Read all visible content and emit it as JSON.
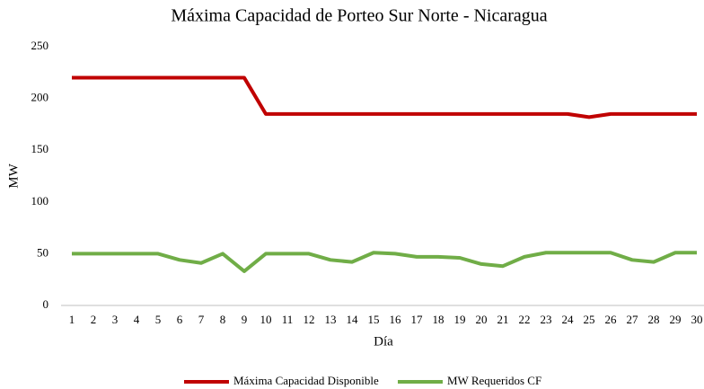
{
  "chart_data": {
    "type": "line",
    "title": "Máxima Capacidad de Porteo Sur Norte - Nicaragua",
    "x_label": "Día",
    "y_label": "MW",
    "categories": [
      1,
      2,
      3,
      4,
      5,
      6,
      7,
      8,
      9,
      10,
      11,
      12,
      13,
      14,
      15,
      16,
      17,
      18,
      19,
      20,
      21,
      22,
      23,
      24,
      25,
      26,
      27,
      28,
      29,
      30
    ],
    "series": [
      {
        "name": "Máxima Capacidad Disponible",
        "color": "#c00000",
        "values": [
          220,
          220,
          220,
          220,
          220,
          220,
          220,
          220,
          220,
          185,
          185,
          185,
          185,
          185,
          185,
          185,
          185,
          185,
          185,
          185,
          185,
          185,
          185,
          185,
          182,
          185,
          185,
          185,
          185,
          185
        ]
      },
      {
        "name": "MW Requeridos CF",
        "color": "#70ad47",
        "values": [
          50,
          50,
          50,
          50,
          50,
          44,
          41,
          50,
          33,
          50,
          50,
          50,
          44,
          42,
          51,
          50,
          47,
          47,
          46,
          40,
          38,
          47,
          51,
          51,
          51,
          51,
          44,
          42,
          51,
          51
        ]
      }
    ],
    "ylim": [
      0,
      250
    ],
    "yticks": [
      0,
      50,
      100,
      150,
      200,
      250
    ],
    "grid": false,
    "legend": "bottom"
  }
}
